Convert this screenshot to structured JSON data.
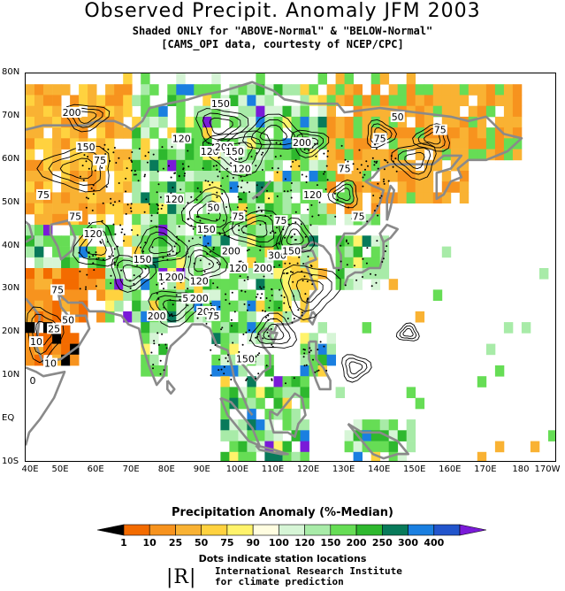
{
  "title": "Observed Precipit. Anomaly JFM 2003",
  "subtitle1": "Shaded ONLY for \"ABOVE-Normal\" & \"BELOW-Normal\"",
  "subtitle2": "[CAMS_OPI data, courtesty of NCEP/CPC]",
  "lat_labels": [
    "80N",
    "70N",
    "60N",
    "50N",
    "40N",
    "30N",
    "20N",
    "10N",
    "EQ",
    "10S"
  ],
  "lon_labels": [
    "40E",
    "50E",
    "60E",
    "70E",
    "80E",
    "90E",
    "100E",
    "110E",
    "120E",
    "130E",
    "140E",
    "150E",
    "160E",
    "170E",
    "180",
    "170W"
  ],
  "legend": {
    "title": "Precipitation Anomaly (%-Median)",
    "ticks": [
      "1",
      "10",
      "25",
      "50",
      "75",
      "90",
      "100",
      "120",
      "150",
      "200",
      "250",
      "300",
      "400"
    ],
    "colors": [
      "#000000",
      "#f36b00",
      "#f7931e",
      "#f9b233",
      "#ffd23f",
      "#fff36b",
      "#fffde0",
      "#d6f5d6",
      "#a8eba8",
      "#66dd55",
      "#2eb82e",
      "#087a5a",
      "#1a7fe0",
      "#2255cc",
      "#7a1ad8"
    ],
    "note": "Dots indicate station locations"
  },
  "logo": {
    "mark": "|R|",
    "line1": "International Research Institute",
    "line2": "for climate prediction"
  },
  "contour_labels": [
    {
      "text": "200",
      "lon": 53,
      "lat": 71
    },
    {
      "text": "150",
      "lon": 95,
      "lat": 73
    },
    {
      "text": "50",
      "lon": 145,
      "lat": 70
    },
    {
      "text": "75",
      "lon": 140,
      "lat": 65
    },
    {
      "text": "75",
      "lon": 157,
      "lat": 67
    },
    {
      "text": "120",
      "lon": 84,
      "lat": 65
    },
    {
      "text": "150",
      "lon": 57,
      "lat": 63
    },
    {
      "text": "75",
      "lon": 61,
      "lat": 60
    },
    {
      "text": "120",
      "lon": 92,
      "lat": 62
    },
    {
      "text": "200",
      "lon": 96,
      "lat": 63
    },
    {
      "text": "150",
      "lon": 99,
      "lat": 62
    },
    {
      "text": "200",
      "lon": 118,
      "lat": 64
    },
    {
      "text": "120",
      "lon": 101,
      "lat": 58
    },
    {
      "text": "75",
      "lon": 130,
      "lat": 58
    },
    {
      "text": "75",
      "lon": 45,
      "lat": 52
    },
    {
      "text": "120",
      "lon": 82,
      "lat": 51
    },
    {
      "text": "120",
      "lon": 121,
      "lat": 52
    },
    {
      "text": "50",
      "lon": 93,
      "lat": 49
    },
    {
      "text": "75",
      "lon": 54,
      "lat": 47
    },
    {
      "text": "75",
      "lon": 100,
      "lat": 47
    },
    {
      "text": "75",
      "lon": 112,
      "lat": 46
    },
    {
      "text": "75",
      "lon": 134,
      "lat": 47
    },
    {
      "text": "120",
      "lon": 59,
      "lat": 43
    },
    {
      "text": "150",
      "lon": 91,
      "lat": 44
    },
    {
      "text": "150",
      "lon": 73,
      "lat": 37
    },
    {
      "text": "200",
      "lon": 98,
      "lat": 39
    },
    {
      "text": "300",
      "lon": 111,
      "lat": 38
    },
    {
      "text": "150",
      "lon": 115,
      "lat": 39
    },
    {
      "text": "120",
      "lon": 100,
      "lat": 35
    },
    {
      "text": "200",
      "lon": 107,
      "lat": 35
    },
    {
      "text": "120",
      "lon": 80,
      "lat": 33
    },
    {
      "text": "200",
      "lon": 82,
      "lat": 33
    },
    {
      "text": "120",
      "lon": 89,
      "lat": 32
    },
    {
      "text": "75",
      "lon": 49,
      "lat": 30
    },
    {
      "text": "50",
      "lon": 86,
      "lat": 28
    },
    {
      "text": "200",
      "lon": 89,
      "lat": 28
    },
    {
      "text": "200",
      "lon": 91,
      "lat": 25
    },
    {
      "text": "200",
      "lon": 77,
      "lat": 24
    },
    {
      "text": "75",
      "lon": 93,
      "lat": 24
    },
    {
      "text": "50",
      "lon": 52,
      "lat": 23
    },
    {
      "text": "25",
      "lon": 48,
      "lat": 21
    },
    {
      "text": "10",
      "lon": 43,
      "lat": 18
    },
    {
      "text": "10",
      "lon": 47,
      "lat": 13
    },
    {
      "text": "150",
      "lon": 102,
      "lat": 14
    },
    {
      "text": "0",
      "lon": 42,
      "lat": 9
    }
  ]
}
